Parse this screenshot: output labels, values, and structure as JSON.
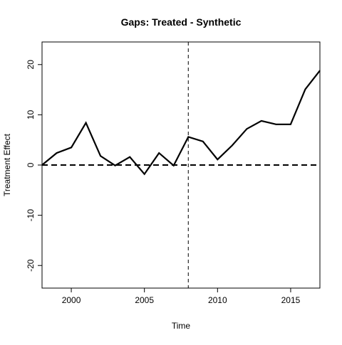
{
  "chart_data": {
    "type": "line",
    "title": "Gaps: Treated - Synthetic",
    "xlabel": "Time",
    "ylabel": "Treatment Effect",
    "xlim": [
      1998,
      2017
    ],
    "ylim": [
      -24.5,
      24.5
    ],
    "x_ticks": [
      2000,
      2005,
      2010,
      2015
    ],
    "y_ticks": [
      -20,
      -10,
      0,
      10,
      20
    ],
    "x_tick_labels": [
      "2000",
      "2005",
      "2010",
      "2015"
    ],
    "y_tick_labels": [
      "-20",
      "-10",
      "0",
      "10",
      "20"
    ],
    "grid": false,
    "legend": "none",
    "reference_lines": {
      "horizontal_y": 0,
      "vertical_x": 2008
    },
    "series": [
      {
        "x": [
          1998,
          1999,
          2000,
          2001,
          2002,
          2003,
          2004,
          2005,
          2006,
          2007,
          2008,
          2009,
          2010,
          2011,
          2012,
          2013,
          2014,
          2015,
          2016,
          2017
        ],
        "values": [
          0.0,
          2.4,
          3.5,
          8.4,
          1.8,
          -0.1,
          1.6,
          -1.8,
          2.4,
          -0.1,
          5.6,
          4.7,
          1.1,
          3.9,
          7.2,
          8.8,
          8.1,
          8.1,
          15.1,
          18.8
        ],
        "color": "#000000"
      }
    ]
  }
}
